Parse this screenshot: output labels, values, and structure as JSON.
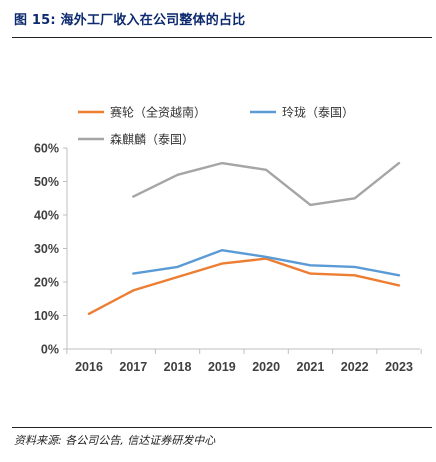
{
  "figure": {
    "title": "图 15:  海外工厂收入在公司整体的占比",
    "source": "资料来源: 各公司公告, 信达证券研发中心"
  },
  "chart_data": {
    "type": "line",
    "x": [
      "2016",
      "2017",
      "2018",
      "2019",
      "2020",
      "2021",
      "2022",
      "2023"
    ],
    "yticks": [
      "0%",
      "10%",
      "20%",
      "30%",
      "40%",
      "50%",
      "60%"
    ],
    "ylim": [
      0,
      60
    ],
    "grid": false,
    "legend_position": "top-left",
    "series": [
      {
        "name": "赛轮（全资越南）",
        "color": "#ED7D31",
        "values": [
          10.5,
          17.5,
          21.5,
          25.5,
          27,
          22.5,
          22,
          19
        ]
      },
      {
        "name": "玲珑（泰国）",
        "color": "#5B9BD5",
        "values": [
          null,
          22.5,
          24.5,
          29.5,
          27.5,
          25,
          24.5,
          22
        ]
      },
      {
        "name": "森麒麟（泰国）",
        "color": "#A5A5A5",
        "values": [
          null,
          45.5,
          52,
          55.5,
          53.5,
          43,
          45,
          55.5
        ]
      }
    ]
  }
}
